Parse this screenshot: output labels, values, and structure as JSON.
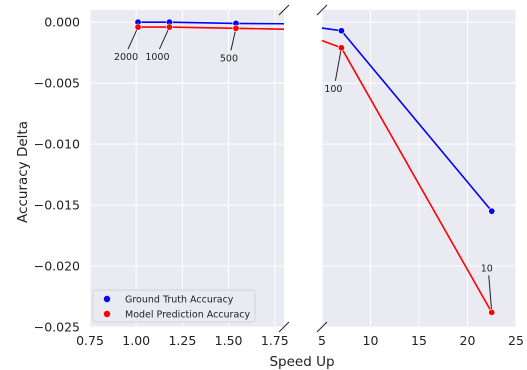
{
  "chart_data": {
    "type": "line",
    "xlabel": "Speed Up",
    "ylabel": "Accuracy Delta",
    "ylim": [
      -0.025,
      0.001
    ],
    "yticks": [
      0.0,
      -0.005,
      -0.01,
      -0.015,
      -0.02,
      -0.025
    ],
    "ytick_labels": [
      "0.000",
      "−0.005",
      "−0.010",
      "−0.015",
      "−0.020",
      "−0.025"
    ],
    "broken_x_axis": true,
    "grid": true,
    "legend_position": "lower-left",
    "panels": [
      {
        "xlim": [
          0.75,
          1.8
        ],
        "xticks": [
          0.75,
          1.0,
          1.25,
          1.5,
          1.75
        ],
        "xtick_labels": [
          "0.75",
          "1.00",
          "1.25",
          "1.50",
          "1.75"
        ]
      },
      {
        "xlim": [
          5,
          25
        ],
        "xticks": [
          5,
          10,
          15,
          20,
          25
        ],
        "xtick_labels": [
          "5",
          "10",
          "15",
          "20",
          "25"
        ]
      }
    ],
    "series": [
      {
        "name": "Ground Truth Accuracy",
        "color": "#0000ff",
        "points": [
          {
            "x": 1.01,
            "y": 0.0
          },
          {
            "x": 1.18,
            "y": 0.0
          },
          {
            "x": 1.54,
            "y": -0.0001
          },
          {
            "x": 7.0,
            "y": -0.0007
          },
          {
            "x": 22.5,
            "y": -0.0155
          }
        ]
      },
      {
        "name": "Model Prediction Accuracy",
        "color": "#ff0000",
        "points": [
          {
            "x": 1.01,
            "y": -0.0004
          },
          {
            "x": 1.18,
            "y": -0.0004
          },
          {
            "x": 1.54,
            "y": -0.0005
          },
          {
            "x": 7.0,
            "y": -0.0021
          },
          {
            "x": 22.5,
            "y": -0.0238
          }
        ]
      }
    ],
    "annotations": [
      {
        "text": "2000",
        "x": 1.01,
        "y": -0.0004
      },
      {
        "text": "1000",
        "x": 1.18,
        "y": -0.0004
      },
      {
        "text": "500",
        "x": 1.54,
        "y": -0.0005
      },
      {
        "text": "100",
        "x": 7.0,
        "y": -0.0021
      },
      {
        "text": "10",
        "x": 22.5,
        "y": -0.0238
      }
    ]
  }
}
